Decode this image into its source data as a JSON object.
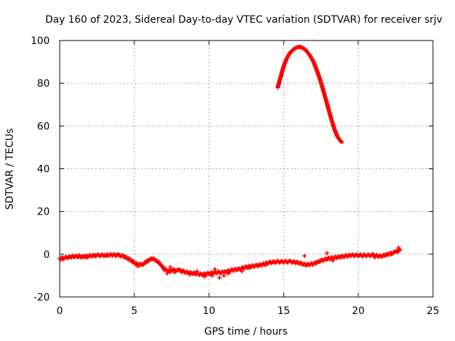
{
  "chart_data": {
    "type": "scatter",
    "title": "Day 160 of 2023, Sidereal Day-to-day VTEC variation (SDTVAR) for receiver srjv",
    "xlabel": "GPS time / hours",
    "ylabel": "SDTVAR / TECUs",
    "xlim": [
      0,
      25
    ],
    "ylim": [
      -20,
      100
    ],
    "xticks": [
      "0",
      "5",
      "10",
      "15",
      "20",
      "25"
    ],
    "yticks": [
      "-20",
      "0",
      "20",
      "40",
      "60",
      "80",
      "100"
    ],
    "grid": true,
    "marker": "plus",
    "series": [
      {
        "name": "SDTVAR main",
        "color": "#ff0000",
        "x": [
          0,
          0.5,
          1.0,
          1.5,
          2.0,
          2.5,
          3.0,
          3.5,
          4.0,
          4.3,
          4.7,
          5.0,
          5.3,
          5.6,
          5.9,
          6.2,
          6.5,
          6.8,
          7.0,
          7.3,
          7.6,
          8.0,
          8.5,
          9.0,
          9.5,
          10.0,
          10.5,
          11.0,
          11.5,
          12.0,
          12.5,
          13.0,
          13.5,
          14.0,
          14.5,
          15.0,
          15.5,
          16.0,
          16.5,
          17.0,
          17.5,
          18.0,
          18.5,
          19.0,
          19.5,
          20.0,
          20.5,
          21.0,
          21.5,
          22.0,
          22.5,
          22.8
        ],
        "y": [
          -2,
          -1.5,
          -1,
          -1.2,
          -0.8,
          -0.5,
          -0.5,
          -0.3,
          -0.5,
          -1,
          -2.5,
          -4,
          -5,
          -4.5,
          -3,
          -2,
          -3,
          -5,
          -7,
          -8,
          -7.5,
          -7.5,
          -8.5,
          -9,
          -9.5,
          -9,
          -8.5,
          -8.5,
          -7.5,
          -7,
          -6,
          -5.5,
          -5,
          -4,
          -3.5,
          -3.5,
          -3.5,
          -4,
          -5,
          -4.5,
          -3,
          -2,
          -1.5,
          -1,
          -0.5,
          -0.5,
          -0.5,
          -0.5,
          -1,
          0,
          1,
          2
        ]
      },
      {
        "name": "SDTVAR scatter band",
        "color": "#ff0000",
        "x": [
          0.2,
          0.8,
          1.3,
          1.8,
          2.4,
          3.2,
          5.2,
          5.8,
          7.2,
          7.4,
          7.7,
          8.2,
          8.7,
          9.2,
          9.7,
          10.2,
          10.4,
          10.7,
          11.0,
          11.3,
          12.2,
          12.7,
          13.8,
          16.4,
          17.9,
          18.3,
          20.3,
          21.1,
          22.2,
          22.7
        ],
        "y": [
          -2.5,
          -1,
          -0.5,
          -1.5,
          -0.5,
          -0.5,
          -5.5,
          -3.5,
          -9,
          -6,
          -8.5,
          -8.5,
          -9.5,
          -8,
          -10.5,
          -10,
          -7,
          -11,
          -10,
          -9,
          -8,
          -6.5,
          -5,
          -0.8,
          0.5,
          -3,
          -1,
          -1.5,
          0,
          3
        ]
      },
      {
        "name": "SDTVAR arc",
        "color": "#ff0000",
        "x": [
          14.6,
          14.8,
          15.0,
          15.2,
          15.4,
          15.6,
          15.8,
          16.0,
          16.2,
          16.4,
          16.6,
          16.8,
          17.0,
          17.2,
          17.4,
          17.6,
          17.8,
          18.0,
          18.2,
          18.4,
          18.6,
          18.8,
          18.9
        ],
        "y": [
          78,
          83,
          88,
          91.5,
          94,
          95.5,
          96.5,
          97,
          96.8,
          96,
          94.5,
          92.5,
          90,
          86.5,
          82.5,
          78,
          73,
          68,
          63,
          58.5,
          55,
          53,
          52.5
        ]
      }
    ]
  }
}
